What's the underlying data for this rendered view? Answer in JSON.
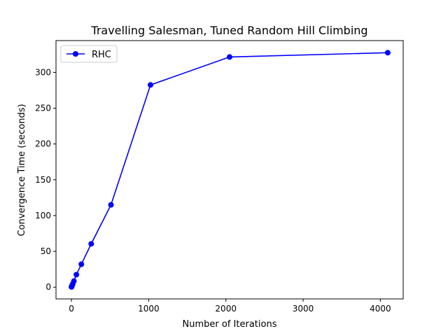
{
  "chart_data": {
    "type": "line",
    "title": "Travelling Salesman, Tuned Random Hill Climbing",
    "xlabel": "Number of Iterations",
    "ylabel": "Convergence Time (seconds)",
    "xlim": [
      -200,
      4296
    ],
    "ylim": [
      -16.4,
      344.4
    ],
    "xticks": [
      0,
      1000,
      2000,
      3000,
      4000
    ],
    "yticks": [
      0,
      50,
      100,
      150,
      200,
      250,
      300
    ],
    "grid": false,
    "legend_position": "upper left",
    "series": [
      {
        "name": "RHC",
        "color": "#0000ff",
        "marker": "circle",
        "x": [
          1,
          2,
          4,
          8,
          16,
          32,
          64,
          128,
          256,
          512,
          1024,
          2048,
          4096
        ],
        "y": [
          0.3,
          0.6,
          1.1,
          2.2,
          4.4,
          8.5,
          17.5,
          32.0,
          60.5,
          115.0,
          282.5,
          321.5,
          327.5
        ]
      }
    ]
  }
}
